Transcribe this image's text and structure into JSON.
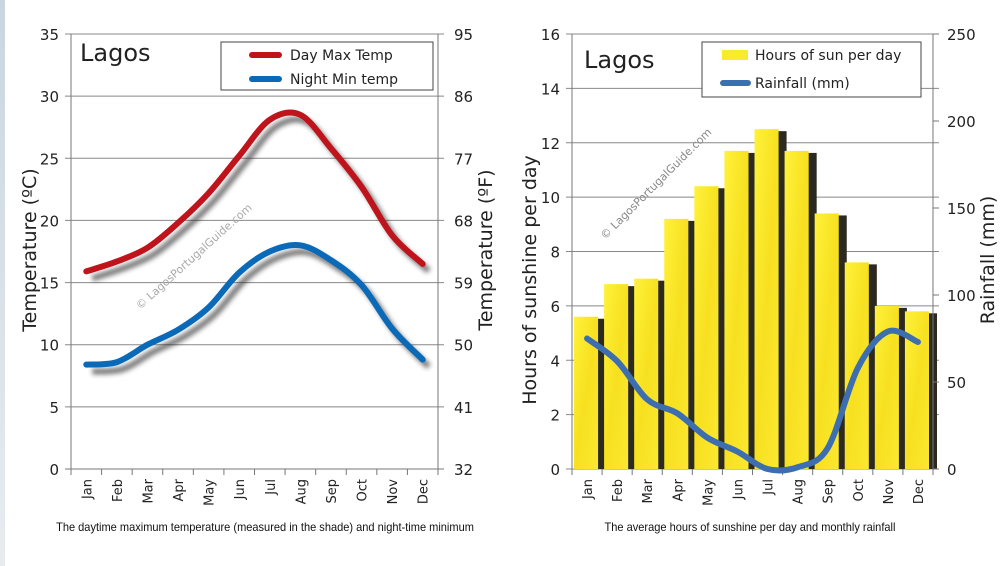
{
  "chart_data": [
    {
      "type": "line",
      "title": "Lagos",
      "categories": [
        "Jan",
        "Feb",
        "Mar",
        "Apr",
        "May",
        "Jun",
        "Jul",
        "Aug",
        "Sep",
        "Oct",
        "Nov",
        "Dec"
      ],
      "ylabel": "Temperature  (ºC)",
      "ylabel_right": "Temperature (ºF)",
      "ylim": [
        0,
        35
      ],
      "yticks": [
        0,
        5,
        10,
        15,
        20,
        25,
        30,
        35
      ],
      "yticks_right": [
        32,
        41,
        50,
        59,
        68,
        77,
        86,
        95
      ],
      "grid": true,
      "legend": "top-right",
      "watermark": "© LagosPortugalGuide.com",
      "caption": "The daytime maximum temperature (measured in the shade) and night-time minimum",
      "series": [
        {
          "name": "Day Max Temp",
          "color": "#c0141c",
          "values": [
            15.9,
            16.7,
            17.8,
            19.8,
            22.2,
            25.2,
            28.1,
            28.5,
            25.8,
            22.7,
            18.8,
            16.5
          ]
        },
        {
          "name": "Night Min temp",
          "color": "#0b6ab8",
          "values": [
            8.4,
            8.6,
            10.0,
            11.2,
            13.0,
            15.8,
            17.5,
            18.0,
            16.8,
            14.8,
            11.3,
            8.8
          ]
        }
      ]
    },
    {
      "type": "bar",
      "title": "Lagos",
      "categories": [
        "Jan",
        "Feb",
        "Mar",
        "Apr",
        "May",
        "Jun",
        "Jul",
        "Aug",
        "Sep",
        "Oct",
        "Nov",
        "Dec"
      ],
      "ylabel": "Hours of sunshine per day",
      "ylabel_right": "Rainfall (mm)",
      "ylim": [
        0,
        16
      ],
      "ylim_right": [
        0,
        250
      ],
      "yticks": [
        0,
        2,
        4,
        6,
        8,
        10,
        12,
        14,
        16
      ],
      "yticks_right": [
        0,
        50,
        100,
        150,
        200,
        250
      ],
      "grid": true,
      "legend": "top-right",
      "watermark": "© LagosPortugalGuide.com",
      "caption": "The average hours of sunshine per day and monthly rainfall",
      "series": [
        {
          "name": "Hours of sun per day",
          "type": "bar",
          "color": "#f8ec2a",
          "values": [
            5.6,
            6.8,
            7.0,
            9.2,
            10.4,
            11.7,
            12.5,
            11.7,
            9.4,
            7.6,
            6.0,
            5.8
          ]
        },
        {
          "name": "Rainfall (mm)",
          "type": "line",
          "axis": "right",
          "color": "#3d6fb0",
          "values": [
            75,
            62,
            40,
            32,
            18,
            10,
            0,
            1,
            12,
            58,
            79,
            73
          ]
        }
      ]
    }
  ]
}
